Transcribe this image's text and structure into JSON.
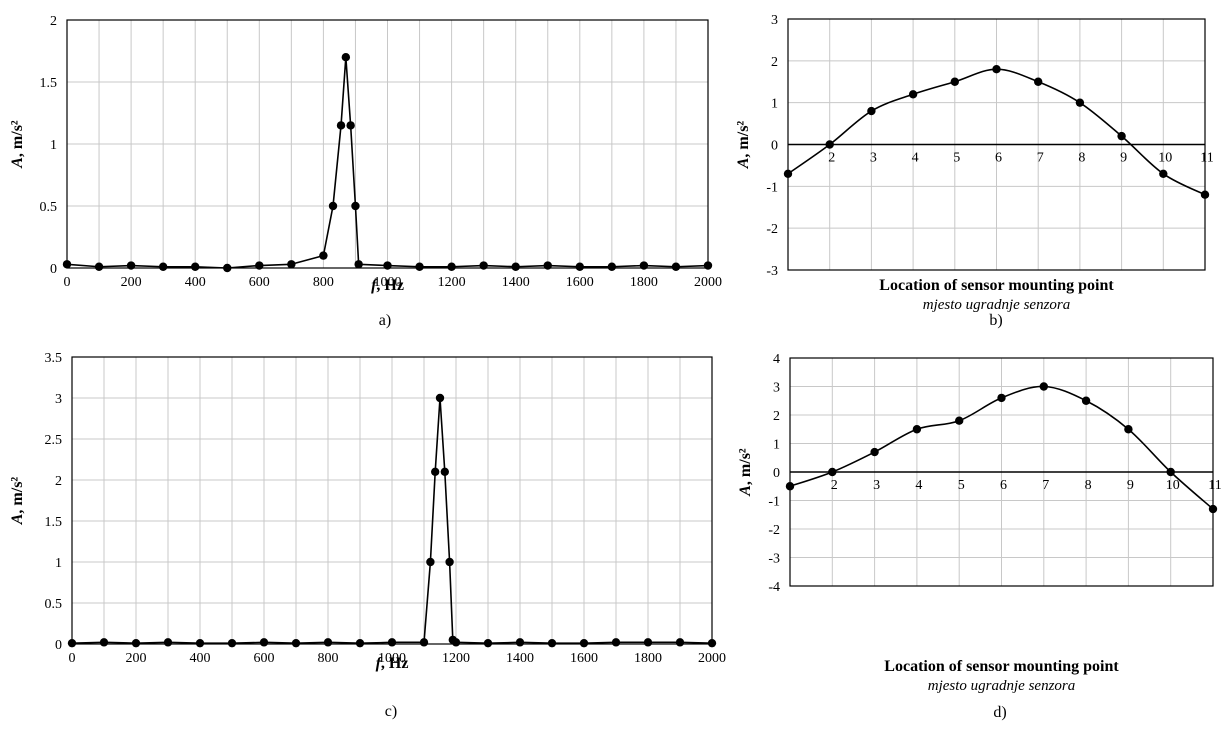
{
  "chart_data": [
    {
      "id": "a",
      "type": "line",
      "caption": "a)",
      "xlabel_italic": "f",
      "xlabel_rest": ", Hz",
      "ylabel_italic": "A",
      "ylabel_rest": ", m/s²",
      "xlim": [
        0,
        2000
      ],
      "ylim": [
        0,
        2
      ],
      "xticks": [
        0,
        100,
        200,
        300,
        400,
        500,
        600,
        700,
        800,
        900,
        1000,
        1100,
        1200,
        1300,
        1400,
        1500,
        1600,
        1700,
        1800,
        1900,
        2000
      ],
      "xtick_labels": [
        "0",
        "200",
        "400",
        "600",
        "800",
        "1000",
        "1200",
        "1400",
        "1600",
        "1800",
        "2000"
      ],
      "yticks": [
        0,
        0.5,
        1,
        1.5,
        2
      ],
      "ytick_labels": [
        "0",
        "0.5",
        "1",
        "1.5",
        "2"
      ],
      "series": [
        {
          "x": [
            0,
            100,
            200,
            300,
            400,
            500,
            600,
            700,
            800,
            830,
            855,
            870,
            885,
            900,
            910,
            1000,
            1100,
            1200,
            1300,
            1400,
            1500,
            1600,
            1700,
            1800,
            1900,
            2000
          ],
          "y": [
            0.03,
            0.01,
            0.02,
            0.01,
            0.01,
            0.0,
            0.02,
            0.03,
            0.1,
            0.5,
            1.15,
            1.7,
            1.15,
            0.5,
            0.03,
            0.02,
            0.01,
            0.01,
            0.02,
            0.01,
            0.02,
            0.01,
            0.01,
            0.02,
            0.01,
            0.02
          ]
        }
      ]
    },
    {
      "id": "b",
      "type": "line",
      "caption": "b)",
      "xlabel": "Location of sensor mounting point",
      "xlabel_sub": "mjesto ugradnje senzora",
      "ylabel_italic": "A",
      "ylabel_rest": ", m/s²",
      "xlim": [
        1,
        11
      ],
      "ylim": [
        -3,
        3
      ],
      "yticks": [
        -3,
        -2,
        -1,
        0,
        1,
        2,
        3
      ],
      "ytick_labels": [
        "-3",
        "-2",
        "-1",
        "0",
        "1",
        "2",
        "3"
      ],
      "xtick_labels": [
        "2",
        "3",
        "4",
        "5",
        "6",
        "7",
        "8",
        "9",
        "10",
        "11"
      ],
      "series": [
        {
          "x": [
            1,
            2,
            3,
            4,
            5,
            6,
            7,
            8,
            9,
            10,
            11
          ],
          "y": [
            -0.7,
            0.0,
            0.8,
            1.2,
            1.5,
            1.8,
            1.5,
            1.0,
            0.2,
            -0.7,
            -1.2
          ]
        }
      ]
    },
    {
      "id": "c",
      "type": "line",
      "caption": "c)",
      "xlabel_italic": "f",
      "xlabel_rest": ", Hz",
      "ylabel_italic": "A",
      "ylabel_rest": ", m/s²",
      "xlim": [
        0,
        2000
      ],
      "ylim": [
        0,
        3.5
      ],
      "xticks": [
        0,
        100,
        200,
        300,
        400,
        500,
        600,
        700,
        800,
        900,
        1000,
        1100,
        1200,
        1300,
        1400,
        1500,
        1600,
        1700,
        1800,
        1900,
        2000
      ],
      "xtick_labels": [
        "0",
        "200",
        "400",
        "600",
        "800",
        "1000",
        "1200",
        "1400",
        "1600",
        "1800",
        "2000"
      ],
      "yticks": [
        0,
        0.5,
        1,
        1.5,
        2,
        2.5,
        3,
        3.5
      ],
      "ytick_labels": [
        "0",
        "0.5",
        "1",
        "1.5",
        "2",
        "2.5",
        "3",
        "3.5"
      ],
      "series": [
        {
          "x": [
            0,
            100,
            200,
            300,
            400,
            500,
            600,
            700,
            800,
            900,
            1000,
            1100,
            1120,
            1135,
            1150,
            1165,
            1180,
            1190,
            1200,
            1300,
            1400,
            1500,
            1600,
            1700,
            1800,
            1900,
            2000
          ],
          "y": [
            0.01,
            0.02,
            0.01,
            0.02,
            0.01,
            0.01,
            0.02,
            0.01,
            0.02,
            0.01,
            0.02,
            0.02,
            1.0,
            2.1,
            3.0,
            2.1,
            1.0,
            0.05,
            0.02,
            0.01,
            0.02,
            0.01,
            0.01,
            0.02,
            0.02,
            0.02,
            0.01
          ]
        }
      ]
    },
    {
      "id": "d",
      "type": "line",
      "caption": "d)",
      "xlabel": "Location of sensor mounting point",
      "xlabel_sub": "mjesto ugradnje senzora",
      "ylabel_italic": "A",
      "ylabel_rest": ", m/s²",
      "xlim": [
        1,
        11
      ],
      "ylim": [
        -4,
        4
      ],
      "yticks": [
        -4,
        -3,
        -2,
        -1,
        0,
        1,
        2,
        3,
        4
      ],
      "ytick_labels": [
        "-4",
        "-3",
        "-2",
        "-1",
        "0",
        "1",
        "2",
        "3",
        "4"
      ],
      "xtick_labels": [
        "2",
        "3",
        "4",
        "5",
        "6",
        "7",
        "8",
        "9",
        "10",
        "11"
      ],
      "series": [
        {
          "x": [
            1,
            2,
            3,
            4,
            5,
            6,
            7,
            8,
            9,
            10,
            11
          ],
          "y": [
            -0.5,
            0.0,
            0.7,
            1.5,
            1.8,
            2.6,
            3.0,
            2.5,
            1.5,
            0.0,
            -1.3
          ]
        }
      ]
    }
  ]
}
